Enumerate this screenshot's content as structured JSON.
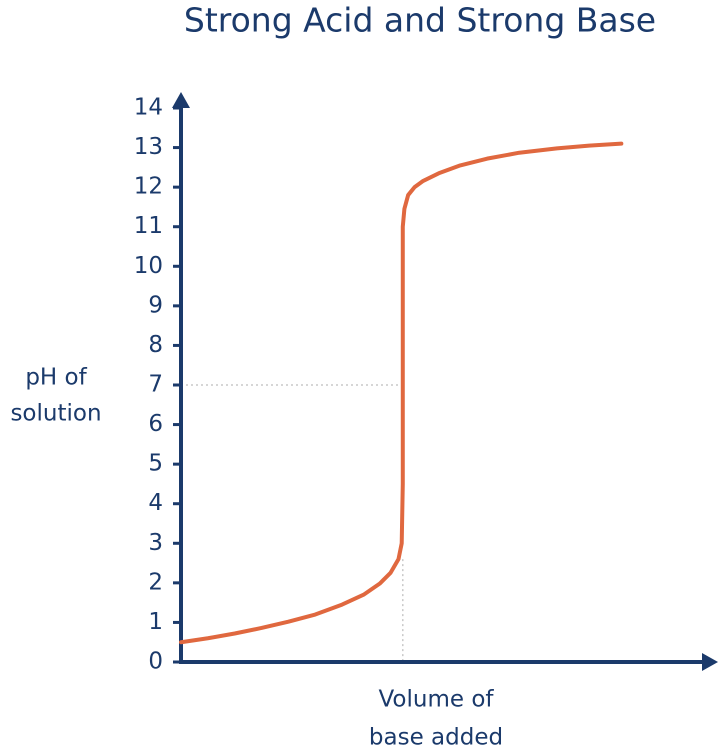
{
  "chart_data": {
    "type": "line",
    "title": "Strong Acid and Strong Base",
    "ylabel": [
      "pH of",
      "solution"
    ],
    "xlabel": [
      "Volume of",
      "base added"
    ],
    "x": [
      0,
      5,
      10,
      15,
      20,
      25,
      30,
      34,
      37,
      39,
      40.5,
      41.1,
      41.3,
      41.3,
      41.3,
      41.6,
      42.3,
      43.5,
      45,
      48,
      52,
      57,
      63,
      70,
      76,
      82
    ],
    "values": [
      0.5,
      0.6,
      0.72,
      0.86,
      1.02,
      1.2,
      1.45,
      1.7,
      1.98,
      2.25,
      2.6,
      3.0,
      4.5,
      7,
      11,
      11.45,
      11.8,
      12.0,
      12.15,
      12.35,
      12.55,
      12.72,
      12.87,
      12.98,
      13.05,
      13.1
    ],
    "color": "#e0683f",
    "xlim": [
      0,
      100
    ],
    "ylim": [
      0,
      14.3
    ],
    "yticks": [
      0,
      1,
      2,
      3,
      4,
      5,
      6,
      7,
      8,
      9,
      10,
      11,
      12,
      13,
      14
    ],
    "reference_point": {
      "x": 41.3,
      "y": 7
    },
    "axis_color": "#1b3a6b"
  }
}
